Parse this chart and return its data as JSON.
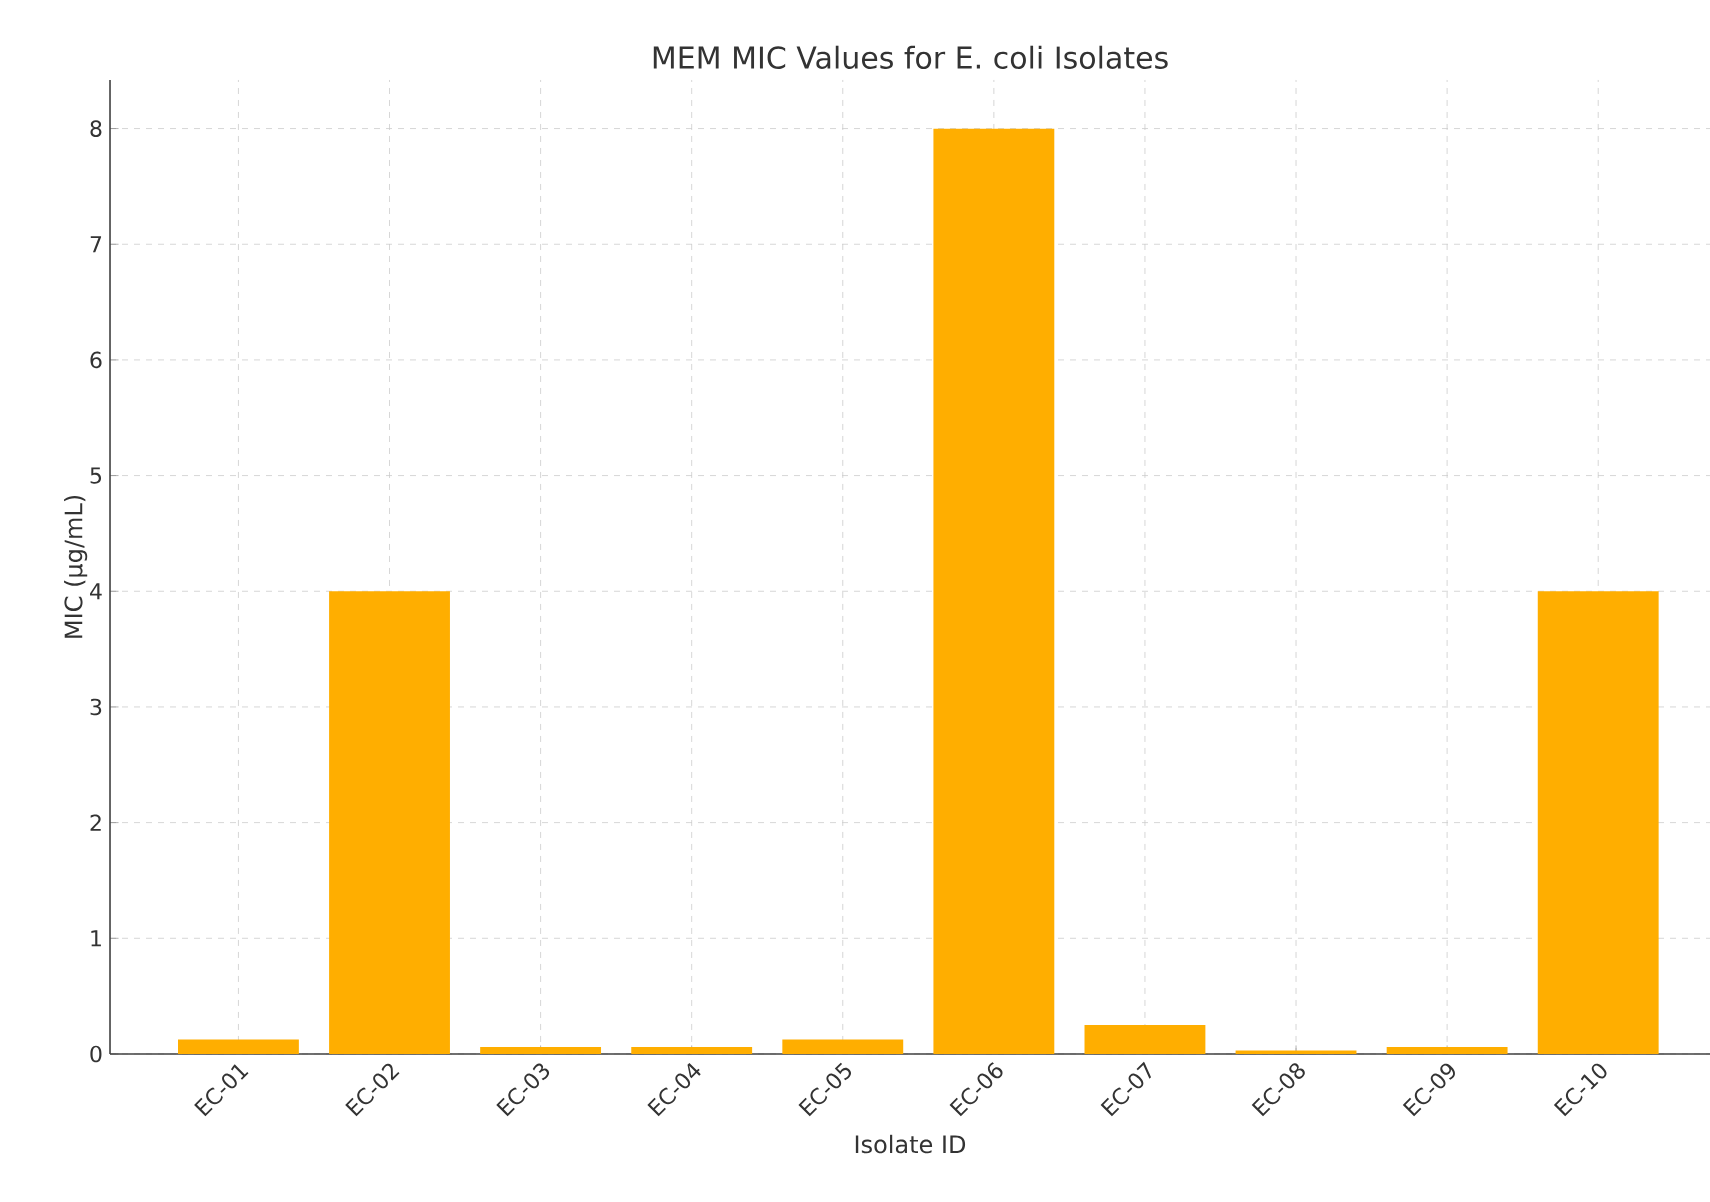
{
  "chart_data": {
    "type": "bar",
    "title": "MEM MIC Values for E. coli Isolates",
    "xlabel": "Isolate ID",
    "ylabel": "MIC (µg/mL)",
    "categories": [
      "EC-01",
      "EC-02",
      "EC-03",
      "EC-04",
      "EC-05",
      "EC-06",
      "EC-07",
      "EC-08",
      "EC-09",
      "EC-10"
    ],
    "values": [
      0.125,
      4,
      0.06,
      0.06,
      0.125,
      8,
      0.25,
      0.03,
      0.06,
      4
    ],
    "color": "#ffae00",
    "ylim": [
      0,
      8.42
    ],
    "yticks": [
      0,
      1,
      2,
      3,
      4,
      5,
      6,
      7,
      8
    ],
    "grid": true
  }
}
